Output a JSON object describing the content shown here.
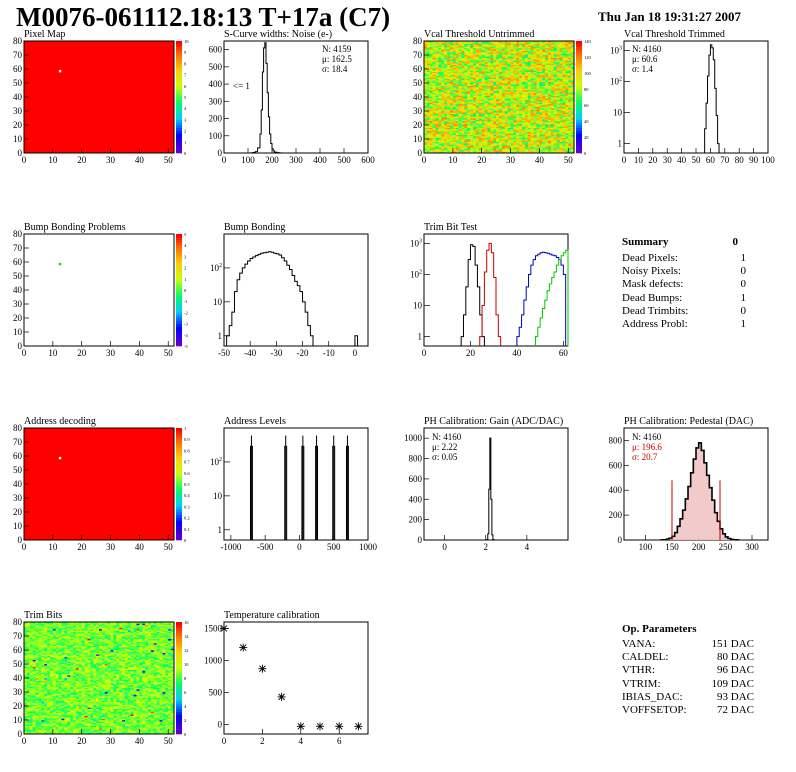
{
  "header": {
    "title": "M0076-061112.18:13 T+17a (C7)",
    "date": "Thu Jan 18 19:31:27 2007"
  },
  "chart_data": [
    {
      "id": "pixel_map",
      "type": "heatmap",
      "title": "Pixel Map",
      "xlim": [
        0,
        52
      ],
      "ylim": [
        0,
        80
      ],
      "xticks": [
        0,
        10,
        20,
        30,
        40,
        50
      ],
      "yticks": [
        0,
        10,
        20,
        30,
        40,
        50,
        60,
        70,
        80
      ],
      "fill": "#ff0000",
      "hot_pixels": [
        {
          "x": 12.5,
          "y": 58.5,
          "color": "#ffffff"
        }
      ],
      "palette_ticks": [
        "0",
        "1",
        "2",
        "3",
        "4",
        "5",
        "6",
        "7",
        "8",
        "9",
        "10"
      ]
    },
    {
      "id": "scurve",
      "type": "histogram",
      "title": "S-Curve widths: Noise (e-)",
      "xlim": [
        0,
        600
      ],
      "ylim": [
        0,
        650
      ],
      "xticks": [
        0,
        100,
        200,
        300,
        400,
        500,
        600
      ],
      "yticks": [
        0,
        100,
        200,
        300,
        400,
        500,
        600
      ],
      "stats": {
        "N": "4159",
        "mean": "162.5",
        "sigma": "18.4"
      },
      "annotation": "<= 1",
      "series": [
        {
          "color": "#000000",
          "x": [
            100,
            110,
            120,
            130,
            140,
            150,
            155,
            160,
            165,
            170,
            175,
            180,
            185,
            190,
            195,
            200,
            205,
            210,
            220,
            230,
            240,
            260
          ],
          "values": [
            0,
            1,
            3,
            8,
            30,
            110,
            250,
            470,
            610,
            640,
            520,
            350,
            210,
            110,
            55,
            25,
            12,
            5,
            2,
            1,
            0,
            0
          ]
        }
      ]
    },
    {
      "id": "vcal_untrimmed",
      "type": "heatmap",
      "title": "Vcal Threshold Untrimmed",
      "xlim": [
        0,
        52
      ],
      "ylim": [
        0,
        80
      ],
      "xticks": [
        0,
        10,
        20,
        30,
        40,
        50
      ],
      "yticks": [
        0,
        10,
        20,
        30,
        40,
        50,
        60,
        70,
        80
      ],
      "value_range": [
        0,
        140
      ],
      "typical_range": [
        60,
        120
      ],
      "palette_ticks": [
        "0",
        "20",
        "40",
        "60",
        "80",
        "100",
        "120",
        "140"
      ]
    },
    {
      "id": "vcal_trimmed",
      "type": "histogram",
      "title": "Vcal Threshold Trimmed",
      "xlim": [
        0,
        100
      ],
      "ylim_log": [
        0.5,
        2000
      ],
      "xticks": [
        0,
        10,
        20,
        30,
        40,
        50,
        60,
        70,
        80,
        90,
        100
      ],
      "yticks": [
        "1",
        "10",
        "10^2",
        "10^3"
      ],
      "stats": {
        "N": "4160",
        "mean": "60.6",
        "sigma": "1.4"
      },
      "series": [
        {
          "color": "#000000",
          "x": [
            55,
            56,
            57,
            58,
            59,
            60,
            61,
            62,
            63,
            64,
            65,
            66
          ],
          "values": [
            0,
            3,
            20,
            150,
            700,
            1500,
            1200,
            500,
            60,
            8,
            1,
            0
          ]
        }
      ]
    },
    {
      "id": "bump_problems",
      "type": "heatmap",
      "title": "Bump Bonding Problems",
      "xlim": [
        0,
        52
      ],
      "ylim": [
        0,
        80
      ],
      "xticks": [
        0,
        10,
        20,
        30,
        40,
        50
      ],
      "yticks": [
        0,
        10,
        20,
        30,
        40,
        50,
        60,
        70,
        80
      ],
      "fill": "#ffffff",
      "hot_pixels": [
        {
          "x": 12.5,
          "y": 58.5,
          "color": "#33cc33"
        }
      ],
      "palette_ticks": [
        "-5",
        "-4",
        "-3",
        "-2",
        "-1",
        "0",
        "1",
        "2",
        "3",
        "4",
        "5"
      ]
    },
    {
      "id": "bump_bonding",
      "type": "histogram",
      "title": "Bump Bonding",
      "xlim": [
        -50,
        5
      ],
      "ylim_log": [
        0.5,
        1000
      ],
      "xticks": [
        -50,
        -40,
        -30,
        -20,
        -10,
        0
      ],
      "yticks": [
        "1",
        "10",
        "10^2"
      ],
      "series": [
        {
          "color": "#000000",
          "x": [
            -49,
            -48,
            -47,
            -46,
            -45,
            -44,
            -43,
            -42,
            -41,
            -40,
            -39,
            -38,
            -37,
            -36,
            -35,
            -34,
            -33,
            -32,
            -31,
            -30,
            -29,
            -28,
            -27,
            -26,
            -25,
            -24,
            -23,
            -22,
            -21,
            -20,
            -19,
            -18,
            -17,
            -16,
            -15,
            -14,
            -13,
            -12,
            -11,
            -10,
            -9,
            -8,
            -7,
            -6,
            -5,
            -4,
            -3,
            -2,
            -1,
            0,
            1
          ],
          "values": [
            1,
            2,
            5,
            20,
            45,
            70,
            100,
            130,
            160,
            190,
            210,
            230,
            250,
            270,
            280,
            290,
            300,
            290,
            270,
            260,
            240,
            200,
            160,
            120,
            90,
            60,
            40,
            30,
            20,
            10,
            5,
            2,
            1,
            0,
            0,
            0,
            0,
            0,
            0,
            0,
            0,
            0,
            0,
            0,
            0,
            0,
            0,
            0,
            0,
            1,
            0
          ]
        }
      ]
    },
    {
      "id": "trim_bit_test",
      "type": "histogram",
      "title": "Trim Bit Test",
      "xlim": [
        0,
        62
      ],
      "ylim_log": [
        0.5,
        2000
      ],
      "xticks": [
        0,
        20,
        40,
        60
      ],
      "yticks": [
        "1",
        "10",
        "10^2",
        "10^3"
      ],
      "series": [
        {
          "color": "#000000",
          "x": [
            16,
            17,
            18,
            19,
            20,
            21,
            22,
            23,
            24,
            25
          ],
          "values": [
            1,
            5,
            40,
            300,
            900,
            800,
            200,
            40,
            5,
            1
          ]
        },
        {
          "color": "#cc0000",
          "x": [
            24,
            25,
            26,
            27,
            28,
            29,
            30,
            31,
            32
          ],
          "values": [
            1,
            10,
            120,
            600,
            1000,
            500,
            80,
            5,
            1
          ]
        },
        {
          "color": "#0000cc",
          "x": [
            40,
            41,
            42,
            43,
            44,
            45,
            46,
            47,
            48,
            49,
            50,
            51,
            52,
            53,
            54,
            55,
            56,
            57,
            58,
            59,
            60
          ],
          "values": [
            1,
            2,
            5,
            15,
            40,
            100,
            200,
            300,
            400,
            450,
            500,
            520,
            500,
            480,
            450,
            420,
            400,
            350,
            300,
            200,
            100
          ]
        },
        {
          "color": "#00cc00",
          "x": [
            48,
            49,
            50,
            51,
            52,
            53,
            54,
            55,
            56,
            57,
            58,
            59,
            60,
            61
          ],
          "values": [
            1,
            2,
            4,
            8,
            15,
            30,
            50,
            80,
            120,
            200,
            300,
            400,
            500,
            600
          ]
        }
      ]
    },
    {
      "id": "address_decoding",
      "type": "heatmap",
      "title": "Address decoding",
      "xlim": [
        0,
        52
      ],
      "ylim": [
        0,
        80
      ],
      "xticks": [
        0,
        10,
        20,
        30,
        40,
        50
      ],
      "yticks": [
        0,
        10,
        20,
        30,
        40,
        50,
        60,
        70,
        80
      ],
      "fill": "#ff0000",
      "hot_pixels": [
        {
          "x": 12.5,
          "y": 58.5,
          "color": "#ffffff"
        }
      ],
      "palette_ticks": [
        "0",
        "0.1",
        "0.2",
        "0.3",
        "0.4",
        "0.5",
        "0.6",
        "0.7",
        "0.8",
        "0.9",
        "1"
      ]
    },
    {
      "id": "address_levels",
      "type": "histogram",
      "title": "Address Levels",
      "xlim": [
        -1100,
        1000
      ],
      "ylim_log": [
        0.5,
        1000
      ],
      "xticks": [
        -1000,
        -500,
        0,
        500,
        1000
      ],
      "yticks": [
        "1",
        "10",
        "10^2"
      ],
      "peaks": [
        -700,
        -200,
        50,
        250,
        500,
        700
      ],
      "peak_height": 600
    },
    {
      "id": "ph_gain",
      "type": "histogram",
      "title": "PH Calibration: Gain (ADC/DAC)",
      "xlim": [
        -1,
        6
      ],
      "ylim": [
        0,
        1100
      ],
      "xticks": [
        0,
        2,
        4
      ],
      "yticks": [
        0,
        200,
        400,
        600,
        800,
        1000
      ],
      "stats": {
        "N": "4160",
        "mean": "2.22",
        "sigma": "0.05"
      },
      "series": [
        {
          "color": "#000000",
          "x": [
            2.05,
            2.1,
            2.15,
            2.2,
            2.25,
            2.3,
            2.35
          ],
          "values": [
            5,
            60,
            500,
            1000,
            400,
            50,
            5
          ]
        }
      ]
    },
    {
      "id": "ph_pedestal",
      "type": "histogram",
      "title": "PH Calibration: Pedestal (DAC)",
      "xlim": [
        60,
        330
      ],
      "ylim": [
        0,
        900
      ],
      "xticks": [
        100,
        150,
        200,
        250,
        300
      ],
      "yticks": [
        0,
        200,
        400,
        600,
        800
      ],
      "stats": {
        "N": "4160",
        "mean": "196.6",
        "sigma": "20.7"
      },
      "cut_lines": [
        150,
        240
      ],
      "series": [
        {
          "color": "#000000",
          "x": [
            130,
            140,
            145,
            150,
            155,
            160,
            165,
            170,
            175,
            180,
            185,
            190,
            195,
            200,
            205,
            210,
            215,
            220,
            225,
            230,
            235,
            240,
            245,
            250,
            255,
            260,
            265,
            270
          ],
          "values": [
            2,
            8,
            15,
            30,
            60,
            110,
            170,
            240,
            330,
            430,
            540,
            650,
            740,
            780,
            720,
            620,
            520,
            420,
            320,
            220,
            150,
            90,
            50,
            25,
            12,
            5,
            2,
            1
          ]
        }
      ]
    },
    {
      "id": "trim_bits",
      "type": "heatmap",
      "title": "Trim Bits",
      "xlim": [
        0,
        52
      ],
      "ylim": [
        0,
        80
      ],
      "xticks": [
        0,
        10,
        20,
        30,
        40,
        50
      ],
      "yticks": [
        0,
        10,
        20,
        30,
        40,
        50,
        60,
        70,
        80
      ],
      "value_range": [
        0,
        16
      ],
      "typical_range": [
        7,
        10
      ],
      "palette_ticks": [
        "0",
        "2",
        "4",
        "6",
        "8",
        "10",
        "12",
        "14",
        "16"
      ]
    },
    {
      "id": "temperature",
      "type": "scatter",
      "title": "Temperature calibration",
      "xlim": [
        0,
        7.5
      ],
      "ylim": [
        -150,
        1600
      ],
      "xticks": [
        0,
        2,
        4,
        6
      ],
      "yticks": [
        0,
        500,
        1000,
        1500
      ],
      "x": [
        0,
        1,
        2,
        3,
        4,
        5,
        6,
        7
      ],
      "values": [
        1500,
        1200,
        870,
        430,
        -30,
        -30,
        -30,
        -30
      ]
    }
  ],
  "summary": {
    "heading": "Summary",
    "heading_value": "0",
    "rows": [
      {
        "label": "Dead Pixels:",
        "value": "1"
      },
      {
        "label": "Noisy Pixels:",
        "value": "0"
      },
      {
        "label": "Mask defects:",
        "value": "0"
      },
      {
        "label": "Dead Bumps:",
        "value": "1"
      },
      {
        "label": "Dead Trimbits:",
        "value": "0"
      },
      {
        "label": "Address Probl:",
        "value": "1"
      }
    ]
  },
  "op_parameters": {
    "heading": "Op. Parameters",
    "rows": [
      {
        "label": "VANA:",
        "value": "151 DAC"
      },
      {
        "label": "CALDEL:",
        "value": "80 DAC"
      },
      {
        "label": "VTHR:",
        "value": "96 DAC"
      },
      {
        "label": "VTRIM:",
        "value": "109 DAC"
      },
      {
        "label": "IBIAS_DAC:",
        "value": "93 DAC"
      },
      {
        "label": "VOFFSETOP:",
        "value": "72 DAC"
      }
    ]
  }
}
